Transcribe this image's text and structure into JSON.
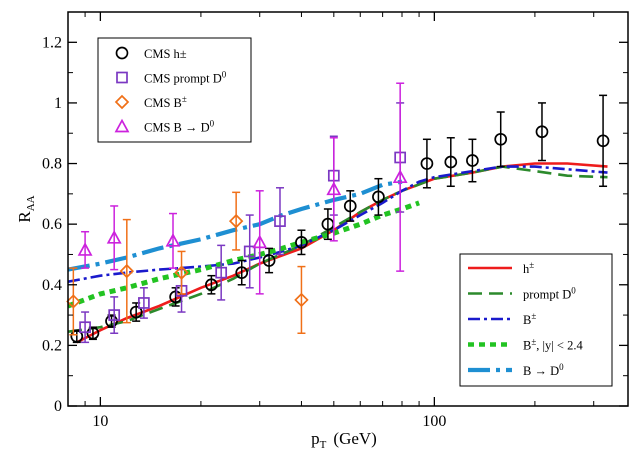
{
  "chart_data": {
    "type": "scatter",
    "xscale": "log",
    "xlim": [
      8,
      380
    ],
    "ylim": [
      0,
      1.3
    ],
    "grid": false,
    "xlabel": "p",
    "xlabel_sub": "T",
    "xlabel_unit": "(GeV)",
    "ylabel": "R",
    "ylabel_sub": "AA",
    "x_ticks": [
      10,
      100
    ],
    "x_ticks_text": [
      "10",
      "100"
    ],
    "y_ticks": [
      0,
      0.2,
      0.4,
      0.6,
      0.8,
      1.0,
      1.2
    ],
    "y_ticks_text": [
      "0",
      "0.2",
      "0.4",
      "0.6",
      "0.8",
      "1",
      "1.2"
    ],
    "legend_points_position": "top-left",
    "legend_lines_position": "bottom-right",
    "points": [
      {
        "name": "CMS h±",
        "color": "#000000",
        "marker": "circle",
        "data": [
          {
            "x": 8.5,
            "y": 0.23,
            "e": 0.02
          },
          {
            "x": 9.5,
            "y": 0.24,
            "e": 0.02
          },
          {
            "x": 10.8,
            "y": 0.28,
            "e": 0.02
          },
          {
            "x": 12.8,
            "y": 0.31,
            "e": 0.03
          },
          {
            "x": 16.8,
            "y": 0.36,
            "e": 0.03
          },
          {
            "x": 21.5,
            "y": 0.4,
            "e": 0.03
          },
          {
            "x": 26.5,
            "y": 0.44,
            "e": 0.04
          },
          {
            "x": 32,
            "y": 0.48,
            "e": 0.04
          },
          {
            "x": 40,
            "y": 0.54,
            "e": 0.04
          },
          {
            "x": 48,
            "y": 0.6,
            "e": 0.05
          },
          {
            "x": 56,
            "y": 0.66,
            "e": 0.05
          },
          {
            "x": 68,
            "y": 0.69,
            "e": 0.06
          },
          {
            "x": 95,
            "y": 0.8,
            "e": 0.08
          },
          {
            "x": 112,
            "y": 0.805,
            "e": 0.08
          },
          {
            "x": 130,
            "y": 0.81,
            "e": 0.07
          },
          {
            "x": 158,
            "y": 0.88,
            "e": 0.09
          },
          {
            "x": 210,
            "y": 0.905,
            "e": 0.095
          },
          {
            "x": 320,
            "y": 0.875,
            "e": 0.15
          }
        ]
      },
      {
        "name": "CMS prompt D",
        "name_sup": "0",
        "color": "#7b38c2",
        "marker": "square",
        "data": [
          {
            "x": 9.0,
            "y": 0.26,
            "e": 0.05
          },
          {
            "x": 11.0,
            "y": 0.3,
            "e": 0.06
          },
          {
            "x": 13.5,
            "y": 0.34,
            "e": 0.05
          },
          {
            "x": 17.5,
            "y": 0.38,
            "e": 0.07
          },
          {
            "x": 23,
            "y": 0.44,
            "e": 0.09
          },
          {
            "x": 28,
            "y": 0.51,
            "e": 0.12
          },
          {
            "x": 34.5,
            "y": 0.61,
            "e": 0.11
          },
          {
            "x": 50,
            "y": 0.76,
            "e": 0.13
          },
          {
            "x": 79,
            "y": 0.82,
            "e": 0.18
          }
        ]
      },
      {
        "name": "CMS B",
        "name_sup": "±",
        "color": "#f07018",
        "marker": "diamond",
        "data": [
          {
            "x": 8.3,
            "y": 0.345,
            "e": 0.11
          },
          {
            "x": 12.0,
            "y": 0.445,
            "e": 0.17
          },
          {
            "x": 17.5,
            "y": 0.44,
            "e": 0.07
          },
          {
            "x": 25.5,
            "y": 0.61,
            "e": 0.095
          },
          {
            "x": 40,
            "y": 0.35,
            "e": 0.11
          }
        ]
      },
      {
        "name": "CMS B → D",
        "name_sup": "0",
        "color": "#cc22dd",
        "marker": "triangle",
        "data": [
          {
            "x": 9.0,
            "y": 0.515,
            "e": 0.06
          },
          {
            "x": 11.0,
            "y": 0.555,
            "e": 0.105
          },
          {
            "x": 16.5,
            "y": 0.545,
            "e": 0.09
          },
          {
            "x": 30,
            "y": 0.54,
            "e": 0.17
          },
          {
            "x": 50,
            "y": 0.715,
            "e": 0.17
          },
          {
            "x": 79,
            "y": 0.755,
            "e": 0.31
          }
        ]
      }
    ],
    "lines": [
      {
        "name": "h",
        "name_sup": "±",
        "color": "#ee1c1c",
        "dash": "solid",
        "width": 2.6,
        "x": [
          8.5,
          10,
          12,
          15,
          20,
          25,
          30,
          40,
          50,
          60,
          70,
          80,
          100,
          130,
          160,
          200,
          250,
          330
        ],
        "y": [
          0.21,
          0.25,
          0.29,
          0.33,
          0.39,
          0.43,
          0.47,
          0.52,
          0.58,
          0.64,
          0.68,
          0.71,
          0.75,
          0.77,
          0.79,
          0.8,
          0.8,
          0.79
        ]
      },
      {
        "name": "prompt D",
        "name_sup": "0",
        "color": "#2c8a2c",
        "dash": "dash",
        "width": 2.6,
        "x": [
          8,
          10,
          12,
          15,
          20,
          25,
          30,
          40,
          50,
          60,
          70,
          80,
          100,
          130,
          160,
          200,
          250,
          330
        ],
        "y": [
          0.245,
          0.26,
          0.28,
          0.32,
          0.37,
          0.42,
          0.47,
          0.53,
          0.59,
          0.64,
          0.68,
          0.71,
          0.75,
          0.77,
          0.79,
          0.775,
          0.76,
          0.755
        ]
      },
      {
        "name": "B",
        "name_sup": "±",
        "color": "#1a1acc",
        "dash": "dashdot",
        "width": 2.6,
        "x": [
          8,
          10,
          12,
          15,
          20,
          25,
          30,
          35,
          40,
          50,
          60,
          70,
          80,
          90,
          100,
          130,
          160,
          200,
          330
        ],
        "y": [
          0.41,
          0.43,
          0.44,
          0.45,
          0.46,
          0.47,
          0.49,
          0.51,
          0.53,
          0.58,
          0.63,
          0.67,
          0.71,
          0.74,
          0.755,
          0.775,
          0.79,
          0.79,
          0.77
        ]
      },
      {
        "name": "B",
        "name_sup": "±",
        "name_suffix": ", |y| < 2.4",
        "color": "#22c322",
        "dash": "dot",
        "width": 5,
        "x": [
          8,
          10,
          12,
          15,
          20,
          25,
          30,
          35,
          40,
          50,
          60,
          70,
          80,
          90
        ],
        "y": [
          0.33,
          0.37,
          0.39,
          0.42,
          0.45,
          0.48,
          0.5,
          0.52,
          0.54,
          0.57,
          0.6,
          0.63,
          0.65,
          0.67
        ]
      },
      {
        "name": "B → D",
        "name_sup": "0",
        "color": "#1e8fd2",
        "dash": "longdash",
        "width": 4.2,
        "x": [
          8,
          10,
          12,
          15,
          20,
          25,
          30,
          35,
          40,
          50,
          60,
          70,
          80
        ],
        "y": [
          0.45,
          0.47,
          0.49,
          0.52,
          0.55,
          0.58,
          0.6,
          0.63,
          0.65,
          0.68,
          0.7,
          0.73,
          0.74
        ]
      }
    ]
  }
}
